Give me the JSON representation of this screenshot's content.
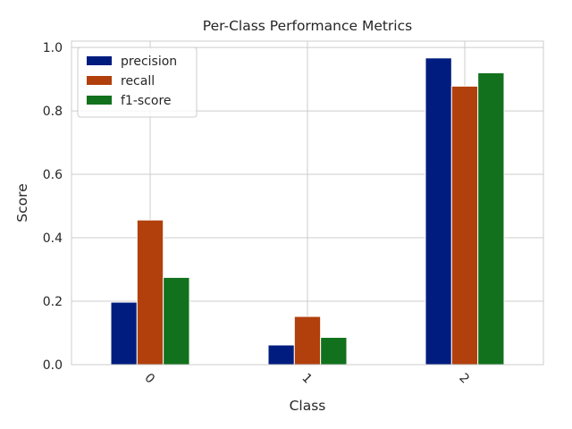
{
  "chart_data": {
    "type": "bar",
    "title": "Per-Class Performance Metrics",
    "xlabel": "Class",
    "ylabel": "Score",
    "categories": [
      "0",
      "1",
      "2"
    ],
    "series": [
      {
        "name": "precision",
        "color": "#001c7f",
        "values": [
          0.197,
          0.062,
          0.967
        ]
      },
      {
        "name": "recall",
        "color": "#b1400d",
        "values": [
          0.456,
          0.152,
          0.878
        ]
      },
      {
        "name": "f1-score",
        "color": "#12711c",
        "values": [
          0.275,
          0.086,
          0.92
        ]
      }
    ],
    "ylim": [
      0,
      1.02
    ],
    "yticks": [
      "0.0",
      "0.2",
      "0.4",
      "0.6",
      "0.8",
      "1.0"
    ],
    "grid": true,
    "legend_position": "top-left",
    "xtick_rotation": 45
  }
}
